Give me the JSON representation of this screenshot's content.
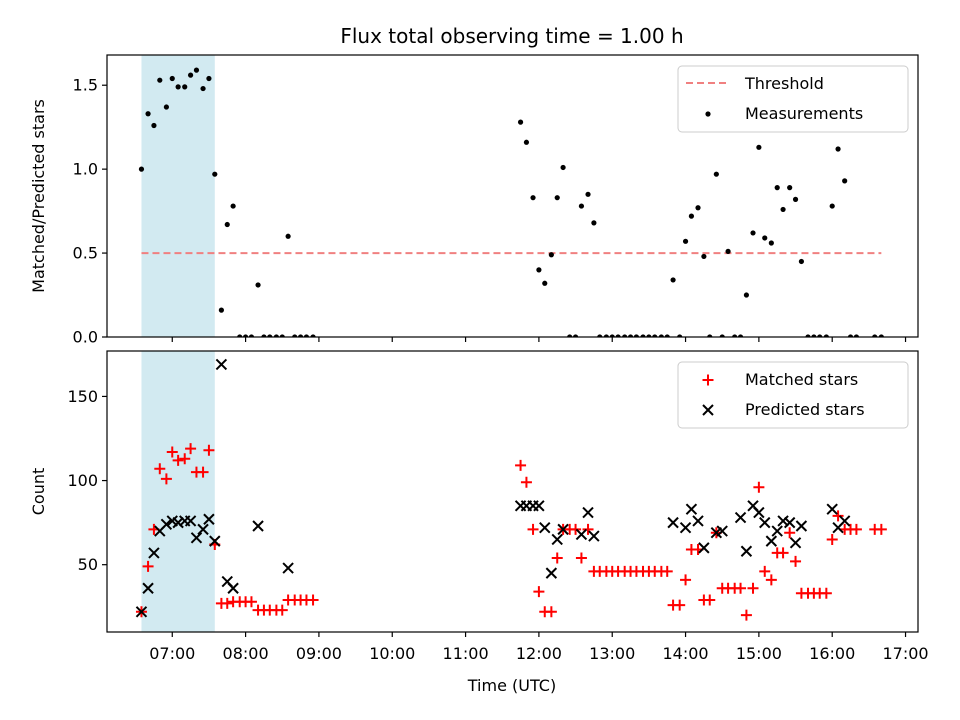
{
  "chart_data": {
    "type": "scatter",
    "title": "Flux total observing time = 1.00 h",
    "xlabel": "Time (UTC)",
    "x_tick_labels": [
      "07:00",
      "08:00",
      "09:00",
      "10:00",
      "11:00",
      "12:00",
      "13:00",
      "14:00",
      "15:00",
      "16:00",
      "17:00"
    ],
    "x_tick_hours": [
      7,
      8,
      9,
      10,
      11,
      12,
      13,
      14,
      15,
      16,
      17
    ],
    "xlim_hours": [
      6.11,
      17.17
    ],
    "highlight_span_hours": [
      6.58,
      7.58
    ],
    "panels": [
      {
        "ylabel": "Matched/Predicted stars",
        "ylim": [
          0,
          1.68
        ],
        "y_ticks": [
          0.0,
          0.5,
          1.0,
          1.5
        ],
        "y_tick_labels": [
          "0.0",
          "0.5",
          "1.0",
          "1.5"
        ],
        "threshold": {
          "name": "Threshold",
          "value": 0.5,
          "x_range_hours": [
            6.58,
            16.67
          ],
          "color": "#f08080"
        },
        "series": [
          {
            "name": "Measurements",
            "marker": "dot",
            "color": "#000000",
            "points": [
              [
                6.58,
                1.0
              ],
              [
                6.67,
                1.33
              ],
              [
                6.75,
                1.26
              ],
              [
                6.83,
                1.53
              ],
              [
                6.92,
                1.37
              ],
              [
                7.0,
                1.54
              ],
              [
                7.08,
                1.49
              ],
              [
                7.17,
                1.49
              ],
              [
                7.25,
                1.56
              ],
              [
                7.33,
                1.59
              ],
              [
                7.42,
                1.48
              ],
              [
                7.5,
                1.54
              ],
              [
                7.58,
                0.97
              ],
              [
                7.67,
                0.16
              ],
              [
                7.75,
                0.67
              ],
              [
                7.83,
                0.78
              ],
              [
                7.92,
                0.0
              ],
              [
                8.0,
                0.0
              ],
              [
                8.08,
                0.0
              ],
              [
                8.17,
                0.31
              ],
              [
                8.25,
                0.0
              ],
              [
                8.33,
                0.0
              ],
              [
                8.42,
                0.0
              ],
              [
                8.5,
                0.0
              ],
              [
                8.58,
                0.6
              ],
              [
                8.67,
                0.0
              ],
              [
                8.75,
                0.0
              ],
              [
                8.83,
                0.0
              ],
              [
                8.92,
                0.0
              ],
              [
                11.75,
                1.28
              ],
              [
                11.83,
                1.16
              ],
              [
                11.92,
                0.83
              ],
              [
                12.0,
                0.4
              ],
              [
                12.08,
                0.32
              ],
              [
                12.17,
                0.49
              ],
              [
                12.25,
                0.83
              ],
              [
                12.33,
                1.01
              ],
              [
                12.42,
                0.0
              ],
              [
                12.5,
                0.0
              ],
              [
                12.58,
                0.78
              ],
              [
                12.67,
                0.85
              ],
              [
                12.75,
                0.68
              ],
              [
                12.83,
                0.0
              ],
              [
                12.92,
                0.0
              ],
              [
                13.0,
                0.0
              ],
              [
                13.08,
                0.0
              ],
              [
                13.17,
                0.0
              ],
              [
                13.25,
                0.0
              ],
              [
                13.33,
                0.0
              ],
              [
                13.42,
                0.0
              ],
              [
                13.5,
                0.0
              ],
              [
                13.58,
                0.0
              ],
              [
                13.67,
                0.0
              ],
              [
                13.75,
                0.0
              ],
              [
                13.83,
                0.34
              ],
              [
                13.92,
                0.0
              ],
              [
                14.0,
                0.57
              ],
              [
                14.08,
                0.72
              ],
              [
                14.17,
                0.77
              ],
              [
                14.25,
                0.48
              ],
              [
                14.33,
                0.0
              ],
              [
                14.42,
                0.97
              ],
              [
                14.5,
                0.0
              ],
              [
                14.58,
                0.51
              ],
              [
                14.67,
                0.0
              ],
              [
                14.75,
                0.0
              ],
              [
                14.83,
                0.25
              ],
              [
                14.92,
                0.62
              ],
              [
                15.0,
                1.13
              ],
              [
                15.08,
                0.59
              ],
              [
                15.17,
                0.56
              ],
              [
                15.25,
                0.89
              ],
              [
                15.33,
                0.76
              ],
              [
                15.42,
                0.89
              ],
              [
                15.5,
                0.82
              ],
              [
                15.58,
                0.45
              ],
              [
                15.67,
                0.0
              ],
              [
                15.75,
                0.0
              ],
              [
                15.83,
                0.0
              ],
              [
                15.92,
                0.0
              ],
              [
                16.0,
                0.78
              ],
              [
                16.08,
                1.12
              ],
              [
                16.17,
                0.93
              ],
              [
                16.25,
                0.0
              ],
              [
                16.33,
                0.0
              ],
              [
                16.58,
                0.0
              ],
              [
                16.67,
                0.0
              ]
            ]
          }
        ]
      },
      {
        "ylabel": "Count",
        "ylim": [
          10,
          177
        ],
        "y_ticks": [
          50,
          100,
          150
        ],
        "y_tick_labels": [
          "50",
          "100",
          "150"
        ],
        "series": [
          {
            "name": "Matched stars",
            "marker": "plus",
            "color": "#ff0000",
            "points": [
              [
                6.58,
                22
              ],
              [
                6.67,
                49
              ],
              [
                6.75,
                71
              ],
              [
                6.83,
                107
              ],
              [
                6.92,
                101
              ],
              [
                7.0,
                117
              ],
              [
                7.08,
                112
              ],
              [
                7.17,
                113
              ],
              [
                7.25,
                119
              ],
              [
                7.33,
                105
              ],
              [
                7.42,
                105
              ],
              [
                7.5,
                118
              ],
              [
                7.58,
                62
              ],
              [
                7.67,
                27
              ],
              [
                7.75,
                27
              ],
              [
                7.83,
                28
              ],
              [
                7.92,
                28
              ],
              [
                8.0,
                28
              ],
              [
                8.08,
                28
              ],
              [
                8.17,
                23
              ],
              [
                8.25,
                23
              ],
              [
                8.33,
                23
              ],
              [
                8.42,
                23
              ],
              [
                8.5,
                23
              ],
              [
                8.58,
                29
              ],
              [
                8.67,
                29
              ],
              [
                8.75,
                29
              ],
              [
                8.83,
                29
              ],
              [
                8.92,
                29
              ],
              [
                11.75,
                109
              ],
              [
                11.83,
                99
              ],
              [
                11.92,
                71
              ],
              [
                12.0,
                34
              ],
              [
                12.08,
                22
              ],
              [
                12.17,
                22
              ],
              [
                12.25,
                54
              ],
              [
                12.33,
                71
              ],
              [
                12.42,
                71
              ],
              [
                12.5,
                71
              ],
              [
                12.58,
                54
              ],
              [
                12.67,
                71
              ],
              [
                12.75,
                46
              ],
              [
                12.83,
                46
              ],
              [
                12.92,
                46
              ],
              [
                13.0,
                46
              ],
              [
                13.08,
                46
              ],
              [
                13.17,
                46
              ],
              [
                13.25,
                46
              ],
              [
                13.33,
                46
              ],
              [
                13.42,
                46
              ],
              [
                13.5,
                46
              ],
              [
                13.58,
                46
              ],
              [
                13.67,
                46
              ],
              [
                13.75,
                46
              ],
              [
                13.83,
                26
              ],
              [
                13.92,
                26
              ],
              [
                14.0,
                41
              ],
              [
                14.08,
                59
              ],
              [
                14.17,
                59
              ],
              [
                14.25,
                29
              ],
              [
                14.33,
                29
              ],
              [
                14.42,
                69
              ],
              [
                14.5,
                36
              ],
              [
                14.58,
                36
              ],
              [
                14.67,
                36
              ],
              [
                14.75,
                36
              ],
              [
                14.83,
                20
              ],
              [
                14.92,
                36
              ],
              [
                15.0,
                96
              ],
              [
                15.08,
                46
              ],
              [
                15.17,
                41
              ],
              [
                15.25,
                57
              ],
              [
                15.33,
                57
              ],
              [
                15.42,
                69
              ],
              [
                15.5,
                52
              ],
              [
                15.58,
                33
              ],
              [
                15.67,
                33
              ],
              [
                15.75,
                33
              ],
              [
                15.83,
                33
              ],
              [
                15.92,
                33
              ],
              [
                16.0,
                65
              ],
              [
                16.08,
                79
              ],
              [
                16.17,
                71
              ],
              [
                16.25,
                71
              ],
              [
                16.33,
                71
              ],
              [
                16.58,
                71
              ],
              [
                16.67,
                71
              ]
            ]
          },
          {
            "name": "Predicted stars",
            "marker": "x",
            "color": "#000000",
            "points": [
              [
                6.58,
                22
              ],
              [
                6.67,
                36
              ],
              [
                6.75,
                57
              ],
              [
                6.83,
                70
              ],
              [
                6.92,
                74
              ],
              [
                7.0,
                76
              ],
              [
                7.08,
                75
              ],
              [
                7.17,
                76
              ],
              [
                7.25,
                76
              ],
              [
                7.33,
                66
              ],
              [
                7.42,
                71
              ],
              [
                7.5,
                77
              ],
              [
                7.58,
                64
              ],
              [
                7.67,
                169
              ],
              [
                7.75,
                40
              ],
              [
                7.83,
                36
              ],
              [
                8.17,
                73
              ],
              [
                8.58,
                48
              ],
              [
                11.75,
                85
              ],
              [
                11.83,
                85
              ],
              [
                11.92,
                85
              ],
              [
                12.0,
                85
              ],
              [
                12.08,
                72
              ],
              [
                12.17,
                45
              ],
              [
                12.25,
                65
              ],
              [
                12.33,
                71
              ],
              [
                12.58,
                68
              ],
              [
                12.67,
                81
              ],
              [
                12.75,
                67
              ],
              [
                13.83,
                75
              ],
              [
                14.0,
                72
              ],
              [
                14.08,
                83
              ],
              [
                14.17,
                76
              ],
              [
                14.25,
                60
              ],
              [
                14.42,
                69
              ],
              [
                14.5,
                70
              ],
              [
                14.75,
                78
              ],
              [
                14.83,
                58
              ],
              [
                14.92,
                85
              ],
              [
                15.0,
                81
              ],
              [
                15.08,
                75
              ],
              [
                15.17,
                64
              ],
              [
                15.25,
                70
              ],
              [
                15.33,
                76
              ],
              [
                15.42,
                75
              ],
              [
                15.5,
                63
              ],
              [
                15.58,
                73
              ],
              [
                16.0,
                83
              ],
              [
                16.08,
                72
              ],
              [
                16.17,
                76
              ]
            ]
          }
        ]
      }
    ]
  }
}
